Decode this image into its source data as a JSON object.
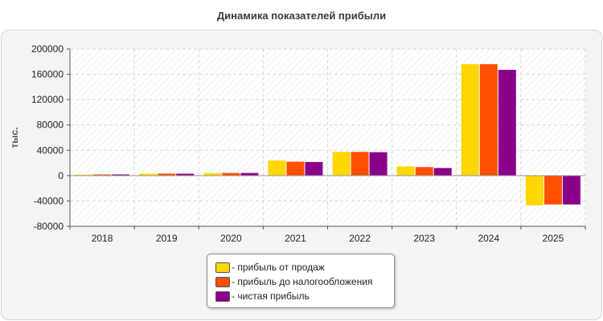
{
  "chart_data": {
    "type": "bar",
    "title": "Динамика показателей прибыли",
    "ylabel": "тыс.",
    "xlabel": "",
    "categories": [
      "2018",
      "2019",
      "2020",
      "2021",
      "2022",
      "2023",
      "2024",
      "2025"
    ],
    "ylim": [
      -80000,
      200000
    ],
    "yticks": [
      "200000",
      "160000",
      "120000",
      "80000",
      "40000",
      "0",
      "-40000",
      "-80000"
    ],
    "grid": true,
    "legend_position": "bottom-center",
    "series": [
      {
        "name": "- прибыль от продаж",
        "color": "#ffd700",
        "values": [
          1500,
          3000,
          4000,
          24000,
          37500,
          14500,
          176000,
          -47000
        ]
      },
      {
        "name": "- прибыль до налогообложения",
        "color": "#ff4f00",
        "values": [
          1800,
          3200,
          4200,
          22000,
          37500,
          13500,
          176000,
          -45500
        ]
      },
      {
        "name": "- чистая прибыль",
        "color": "#8b008b",
        "values": [
          1800,
          3000,
          4200,
          21500,
          37000,
          12000,
          167000,
          -45500
        ]
      }
    ]
  }
}
